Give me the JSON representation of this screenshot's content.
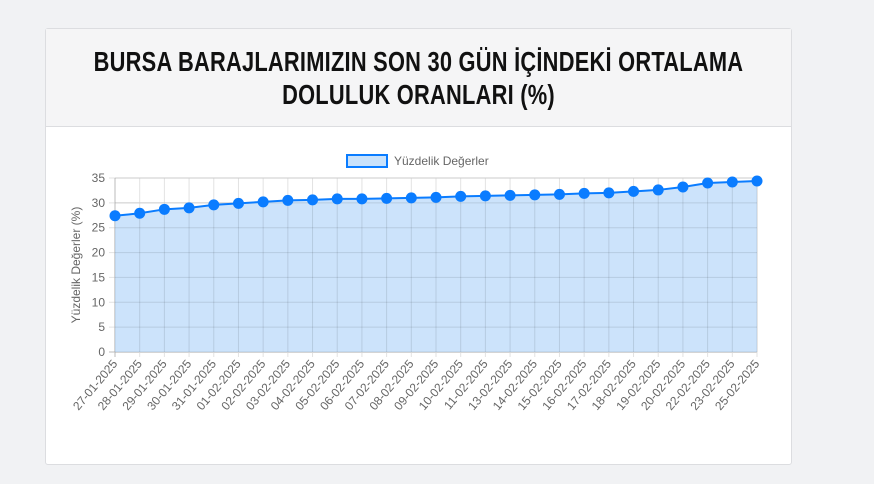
{
  "header": {
    "title_line1": "BURSA BARAJLARIMIZIN SON 30 GÜN İÇİNDEKİ ORTALAMA",
    "title_line2": "DOLULUK ORANLARI (%)"
  },
  "chart_data": {
    "type": "area",
    "legend": {
      "label": "Yüzdelik Değerler",
      "placement": "top"
    },
    "ylabel": "Yüzdelik Değerler (%)",
    "xlabel": "",
    "ylim": [
      0,
      35
    ],
    "yticks": [
      0,
      5,
      10,
      15,
      20,
      25,
      30,
      35
    ],
    "grid": true,
    "colors": {
      "line": "#0a7cff",
      "fill": "#c9e2fb",
      "grid": "#e2e2e2"
    },
    "categories": [
      "27-01-2025",
      "28-01-2025",
      "29-01-2025",
      "30-01-2025",
      "31-01-2025",
      "01-02-2025",
      "02-02-2025",
      "03-02-2025",
      "04-02-2025",
      "05-02-2025",
      "06-02-2025",
      "07-02-2025",
      "08-02-2025",
      "09-02-2025",
      "10-02-2025",
      "11-02-2025",
      "13-02-2025",
      "14-02-2025",
      "15-02-2025",
      "16-02-2025",
      "17-02-2025",
      "18-02-2025",
      "19-02-2025",
      "20-02-2025",
      "22-02-2025",
      "23-02-2025",
      "25-02-2025"
    ],
    "series": [
      {
        "name": "Yüzdelik Değerler",
        "values": [
          27.4,
          27.9,
          28.7,
          29.0,
          29.6,
          29.9,
          30.2,
          30.5,
          30.6,
          30.8,
          30.8,
          30.9,
          31.0,
          31.1,
          31.3,
          31.4,
          31.5,
          31.6,
          31.7,
          31.9,
          32.0,
          32.3,
          32.6,
          33.2,
          34.0,
          34.2,
          34.4
        ]
      }
    ]
  }
}
